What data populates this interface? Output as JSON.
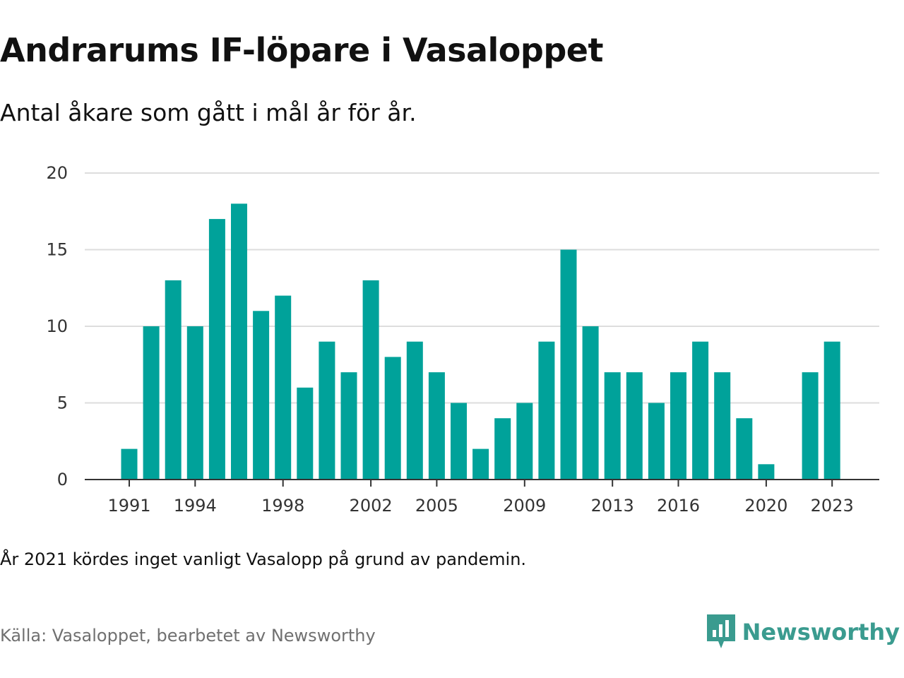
{
  "title": "Andrarums IF-löpare i Vasaloppet",
  "subtitle": "Antal åkare som gått i mål år för år.",
  "note": "År 2021 kördes inget vanligt Vasalopp på grund av pandemin.",
  "source": "Källa: Vasaloppet, bearbetet av Newsworthy",
  "brand": {
    "name": "Newsworthy",
    "icon": "newsworthy-logo-icon",
    "color": "#3a9b8f"
  },
  "chart_data": {
    "type": "bar",
    "categories": [
      1991,
      1992,
      1993,
      1994,
      1995,
      1996,
      1997,
      1998,
      1999,
      2000,
      2001,
      2002,
      2003,
      2004,
      2005,
      2006,
      2007,
      2008,
      2009,
      2010,
      2011,
      2012,
      2013,
      2014,
      2015,
      2016,
      2017,
      2018,
      2019,
      2020,
      2021,
      2022,
      2023
    ],
    "values": [
      2,
      10,
      13,
      10,
      17,
      18,
      11,
      12,
      6,
      9,
      7,
      13,
      8,
      9,
      7,
      5,
      2,
      4,
      5,
      9,
      15,
      10,
      7,
      7,
      5,
      7,
      9,
      7,
      4,
      1,
      null,
      7,
      9
    ],
    "x_ticks": [
      1991,
      1994,
      1998,
      2002,
      2005,
      2009,
      2013,
      2016,
      2020,
      2023
    ],
    "y_ticks": [
      0,
      5,
      10,
      15,
      20
    ],
    "ylim": [
      0,
      20
    ],
    "grid": true,
    "bar_color": "#00a29a",
    "gridline_color": "#dddddd",
    "axis_color": "#333333"
  }
}
